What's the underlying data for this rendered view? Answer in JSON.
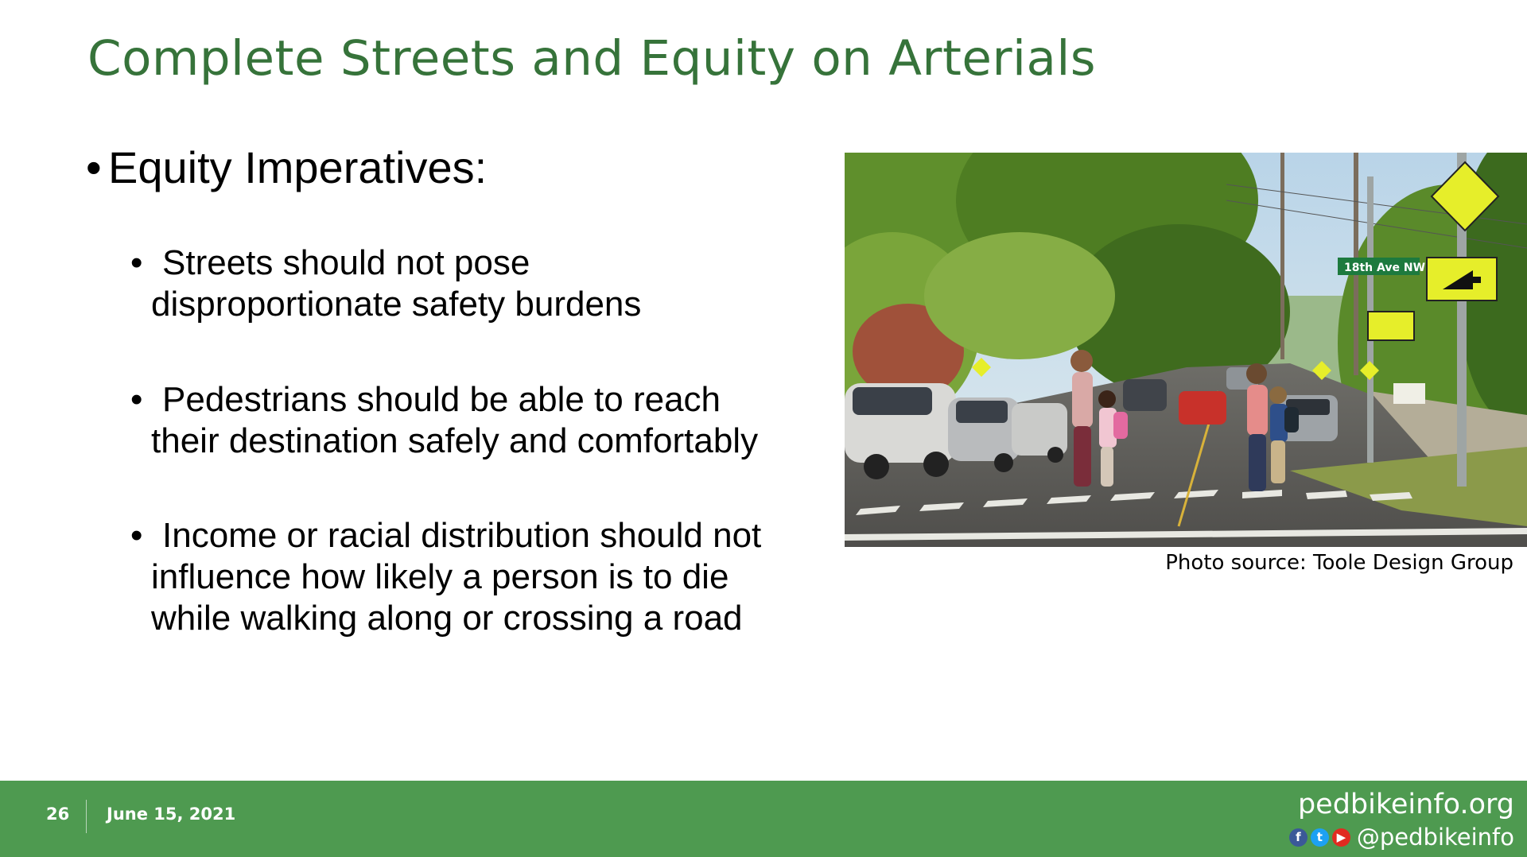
{
  "slide": {
    "title": "Complete Streets and Equity on Arterials",
    "main_bullet": "Equity Imperatives:",
    "bullet_char": "•",
    "sub_bullets": [
      {
        "line1": "Streets should not pose",
        "line2": "disproportionate safety burdens",
        "line3": ""
      },
      {
        "line1": "Pedestrians should be able to reach",
        "line2": "their destination safely and comfortably",
        "line3": ""
      },
      {
        "line1": "Income or racial distribution should not",
        "line2": "influence how likely a person is to die",
        "line3": "while walking along or crossing a road"
      }
    ]
  },
  "photo": {
    "credit": "Photo source: Toole Design Group",
    "street_sign": "18th Ave NW"
  },
  "footer": {
    "page_number": "26",
    "date": "June 15, 2021",
    "website": "pedbikeinfo.org",
    "handle": "@pedbikeinfo",
    "social_icons": [
      "facebook-icon",
      "twitter-icon",
      "youtube-icon"
    ],
    "color": "#4e9a50"
  },
  "colors": {
    "title": "#36733a",
    "text": "#000000",
    "background": "#ffffff"
  }
}
